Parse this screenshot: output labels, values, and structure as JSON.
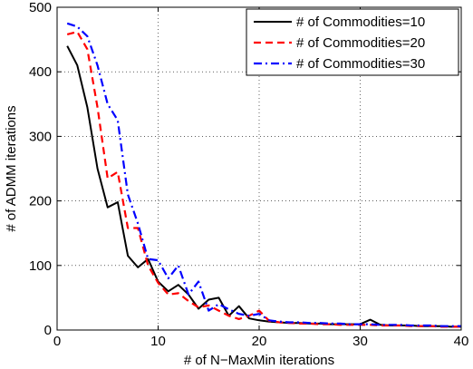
{
  "chart_data": {
    "type": "line",
    "title": "",
    "xlabel": "# of N−MaxMin iterations",
    "ylabel": "# of ADMM iterations",
    "xlim": [
      0,
      40
    ],
    "ylim": [
      0,
      500
    ],
    "xticks": [
      0,
      10,
      20,
      30,
      40
    ],
    "yticks": [
      0,
      100,
      200,
      300,
      400,
      500
    ],
    "grid": true,
    "legend_position": "top-right",
    "x": [
      1,
      2,
      3,
      4,
      5,
      6,
      7,
      8,
      9,
      10,
      11,
      12,
      13,
      14,
      15,
      16,
      17,
      18,
      19,
      20,
      21,
      22,
      23,
      24,
      25,
      26,
      27,
      28,
      29,
      30,
      31,
      32,
      33,
      34,
      35,
      36,
      37,
      38,
      39,
      40
    ],
    "series": [
      {
        "name": "# of Commodities=10",
        "color": "#000000",
        "style": "solid",
        "values": [
          440,
          410,
          345,
          250,
          190,
          198,
          115,
          97,
          110,
          75,
          60,
          70,
          55,
          33,
          47,
          50,
          22,
          37,
          18,
          15,
          13,
          12,
          11,
          11,
          10,
          10,
          9,
          9,
          9,
          9,
          16,
          8,
          7,
          7,
          7,
          6,
          6,
          6,
          5,
          5
        ]
      },
      {
        "name": "# of Commodities=20",
        "color": "#ff0000",
        "style": "dashed",
        "values": [
          458,
          462,
          435,
          345,
          235,
          245,
          158,
          158,
          100,
          73,
          55,
          57,
          45,
          35,
          38,
          30,
          22,
          17,
          22,
          30,
          14,
          12,
          11,
          10,
          10,
          9,
          9,
          8,
          8,
          8,
          8,
          7,
          7,
          7,
          6,
          6,
          6,
          5,
          5,
          5
        ]
      },
      {
        "name": "# of Commodities=30",
        "color": "#0000ff",
        "style": "dashdot",
        "values": [
          475,
          470,
          455,
          410,
          350,
          325,
          210,
          165,
          110,
          108,
          80,
          100,
          55,
          75,
          30,
          40,
          32,
          25,
          22,
          25,
          15,
          13,
          12,
          12,
          11,
          11,
          10,
          10,
          9,
          9,
          9,
          8,
          8,
          8,
          7,
          7,
          7,
          6,
          6,
          6
        ]
      }
    ]
  }
}
